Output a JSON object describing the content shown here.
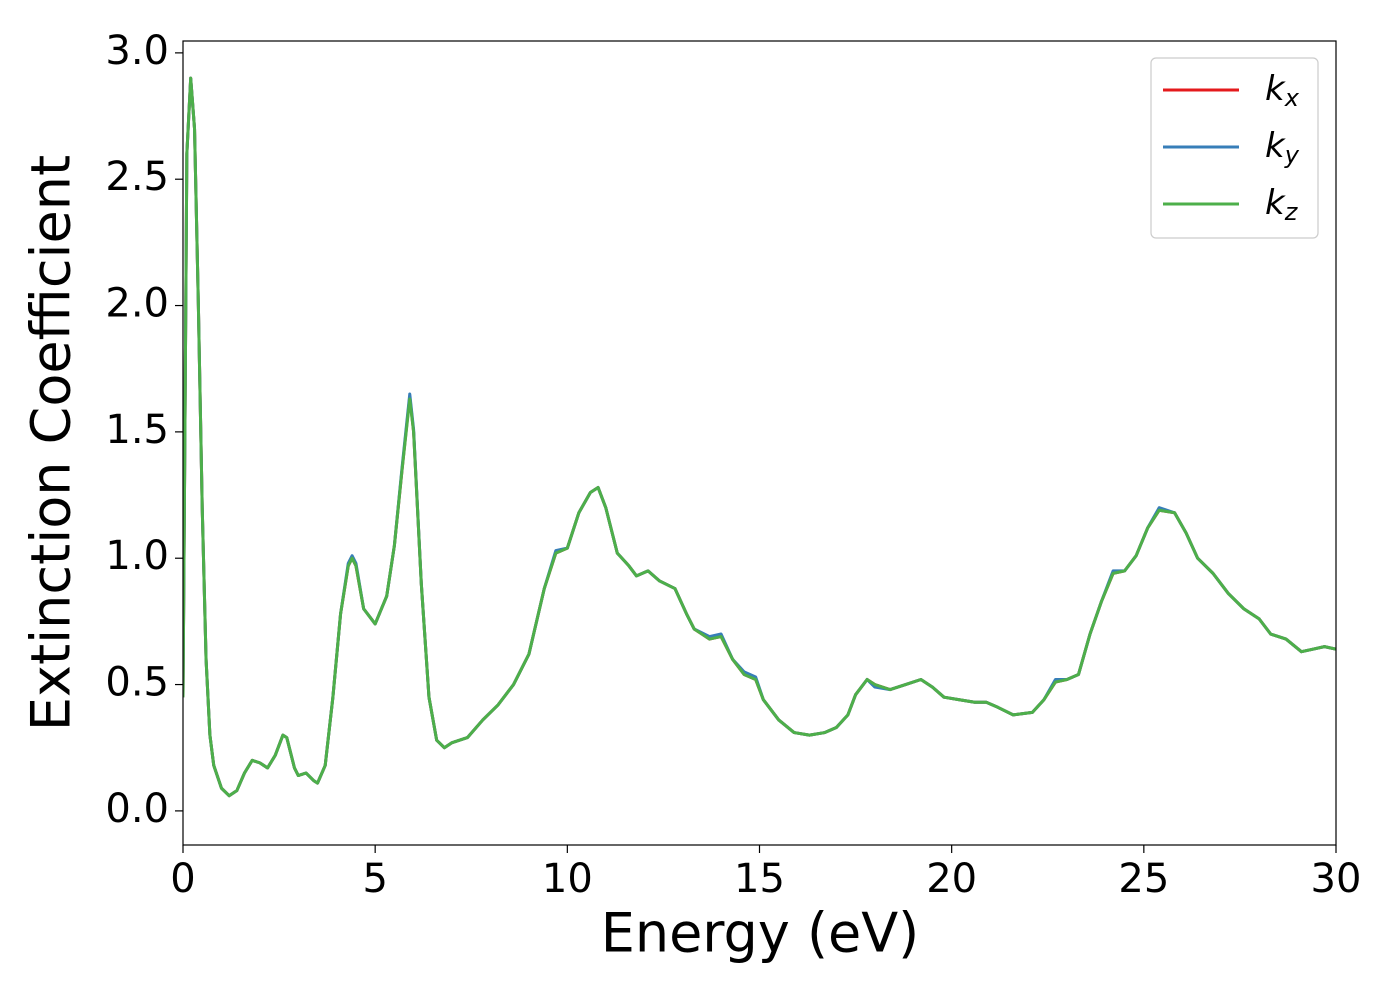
{
  "chart_data": {
    "type": "line",
    "xlabel": "Energy (eV)",
    "ylabel": "Extinction Coefficient",
    "x": [
      0,
      0.05,
      0.1,
      0.2,
      0.3,
      0.4,
      0.5,
      0.6,
      0.7,
      0.8,
      1.0,
      1.2,
      1.4,
      1.6,
      1.8,
      2.0,
      2.2,
      2.4,
      2.6,
      2.7,
      2.9,
      3.0,
      3.2,
      3.4,
      3.5,
      3.7,
      3.9,
      4.1,
      4.3,
      4.4,
      4.5,
      4.7,
      5.0,
      5.3,
      5.5,
      5.7,
      5.9,
      6.0,
      6.2,
      6.4,
      6.6,
      6.8,
      7.0,
      7.4,
      7.8,
      8.2,
      8.6,
      9.0,
      9.4,
      9.7,
      10.0,
      10.3,
      10.6,
      10.8,
      11.0,
      11.3,
      11.6,
      11.8,
      12.1,
      12.4,
      12.8,
      13.1,
      13.3,
      13.7,
      14.0,
      14.3,
      14.6,
      14.9,
      15.1,
      15.5,
      15.9,
      16.3,
      16.7,
      17.0,
      17.3,
      17.5,
      17.8,
      18.0,
      18.4,
      18.8,
      19.2,
      19.5,
      19.8,
      20.2,
      20.6,
      20.9,
      21.2,
      21.6,
      22.1,
      22.4,
      22.7,
      23.0,
      23.3,
      23.6,
      23.9,
      24.2,
      24.5,
      24.8,
      25.1,
      25.4,
      25.8,
      26.1,
      26.4,
      26.8,
      27.2,
      27.6,
      28.0,
      28.3,
      28.7,
      29.1,
      29.4,
      29.7,
      30.0
    ],
    "series": [
      {
        "name": "kx",
        "color": "#e41a1c",
        "values": [
          0.45,
          1.5,
          2.6,
          2.9,
          2.7,
          2.0,
          1.2,
          0.6,
          0.3,
          0.18,
          0.09,
          0.06,
          0.08,
          0.15,
          0.2,
          0.19,
          0.17,
          0.22,
          0.3,
          0.29,
          0.17,
          0.14,
          0.15,
          0.12,
          0.11,
          0.18,
          0.45,
          0.78,
          0.97,
          1.0,
          0.97,
          0.8,
          0.74,
          0.85,
          1.05,
          1.35,
          1.64,
          1.5,
          0.9,
          0.45,
          0.28,
          0.25,
          0.27,
          0.29,
          0.36,
          0.42,
          0.5,
          0.62,
          0.88,
          1.02,
          1.04,
          1.18,
          1.26,
          1.28,
          1.2,
          1.02,
          0.97,
          0.93,
          0.95,
          0.91,
          0.88,
          0.78,
          0.72,
          0.68,
          0.69,
          0.6,
          0.54,
          0.52,
          0.44,
          0.36,
          0.31,
          0.3,
          0.31,
          0.33,
          0.38,
          0.46,
          0.52,
          0.5,
          0.48,
          0.5,
          0.52,
          0.49,
          0.45,
          0.44,
          0.43,
          0.43,
          0.41,
          0.38,
          0.39,
          0.44,
          0.51,
          0.52,
          0.54,
          0.7,
          0.83,
          0.94,
          0.95,
          1.01,
          1.12,
          1.19,
          1.18,
          1.1,
          1.0,
          0.94,
          0.86,
          0.8,
          0.76,
          0.7,
          0.68,
          0.63,
          0.64,
          0.65,
          0.64
        ]
      },
      {
        "name": "ky",
        "color": "#377eb8",
        "values": [
          0.45,
          1.5,
          2.6,
          2.9,
          2.7,
          2.0,
          1.2,
          0.6,
          0.3,
          0.18,
          0.09,
          0.06,
          0.08,
          0.15,
          0.2,
          0.19,
          0.17,
          0.22,
          0.3,
          0.29,
          0.17,
          0.14,
          0.15,
          0.12,
          0.11,
          0.18,
          0.45,
          0.78,
          0.98,
          1.01,
          0.98,
          0.8,
          0.74,
          0.85,
          1.05,
          1.36,
          1.65,
          1.51,
          0.9,
          0.45,
          0.28,
          0.25,
          0.27,
          0.29,
          0.36,
          0.42,
          0.5,
          0.62,
          0.88,
          1.03,
          1.04,
          1.18,
          1.26,
          1.28,
          1.2,
          1.02,
          0.97,
          0.93,
          0.95,
          0.91,
          0.88,
          0.78,
          0.72,
          0.69,
          0.7,
          0.6,
          0.55,
          0.53,
          0.44,
          0.36,
          0.31,
          0.3,
          0.31,
          0.33,
          0.38,
          0.46,
          0.52,
          0.49,
          0.48,
          0.5,
          0.52,
          0.49,
          0.45,
          0.44,
          0.43,
          0.43,
          0.41,
          0.38,
          0.39,
          0.44,
          0.52,
          0.52,
          0.54,
          0.7,
          0.83,
          0.95,
          0.95,
          1.01,
          1.12,
          1.2,
          1.18,
          1.1,
          1.0,
          0.94,
          0.86,
          0.8,
          0.76,
          0.7,
          0.68,
          0.63,
          0.64,
          0.65,
          0.64
        ]
      },
      {
        "name": "kz",
        "color": "#4daf4a",
        "values": [
          0.45,
          1.5,
          2.6,
          2.9,
          2.7,
          2.0,
          1.2,
          0.6,
          0.3,
          0.18,
          0.09,
          0.06,
          0.08,
          0.15,
          0.2,
          0.19,
          0.17,
          0.22,
          0.3,
          0.29,
          0.17,
          0.14,
          0.15,
          0.12,
          0.11,
          0.18,
          0.45,
          0.78,
          0.97,
          1.0,
          0.97,
          0.8,
          0.74,
          0.85,
          1.05,
          1.35,
          1.63,
          1.5,
          0.9,
          0.45,
          0.28,
          0.25,
          0.27,
          0.29,
          0.36,
          0.42,
          0.5,
          0.62,
          0.88,
          1.02,
          1.04,
          1.18,
          1.26,
          1.28,
          1.2,
          1.02,
          0.97,
          0.93,
          0.95,
          0.91,
          0.88,
          0.78,
          0.72,
          0.68,
          0.69,
          0.6,
          0.54,
          0.52,
          0.44,
          0.36,
          0.31,
          0.3,
          0.31,
          0.33,
          0.38,
          0.46,
          0.52,
          0.5,
          0.48,
          0.5,
          0.52,
          0.49,
          0.45,
          0.44,
          0.43,
          0.43,
          0.41,
          0.38,
          0.39,
          0.44,
          0.51,
          0.52,
          0.54,
          0.7,
          0.83,
          0.94,
          0.95,
          1.01,
          1.12,
          1.19,
          1.18,
          1.1,
          1.0,
          0.94,
          0.86,
          0.8,
          0.76,
          0.7,
          0.68,
          0.63,
          0.64,
          0.65,
          0.64
        ]
      }
    ],
    "xlim": [
      0,
      30
    ],
    "xticks": [
      0,
      5,
      10,
      15,
      20,
      25,
      30
    ],
    "ylim": [
      -0.135,
      3.047
    ],
    "yticks": [
      {
        "value": 0,
        "label": "0.0"
      },
      0.5,
      {
        "value": 1,
        "label": "1.0"
      },
      1.5,
      {
        "value": 2,
        "label": "2.0"
      },
      2.5,
      {
        "value": 3,
        "label": "3.0"
      }
    ],
    "legend": "upper right",
    "grid": false
  }
}
